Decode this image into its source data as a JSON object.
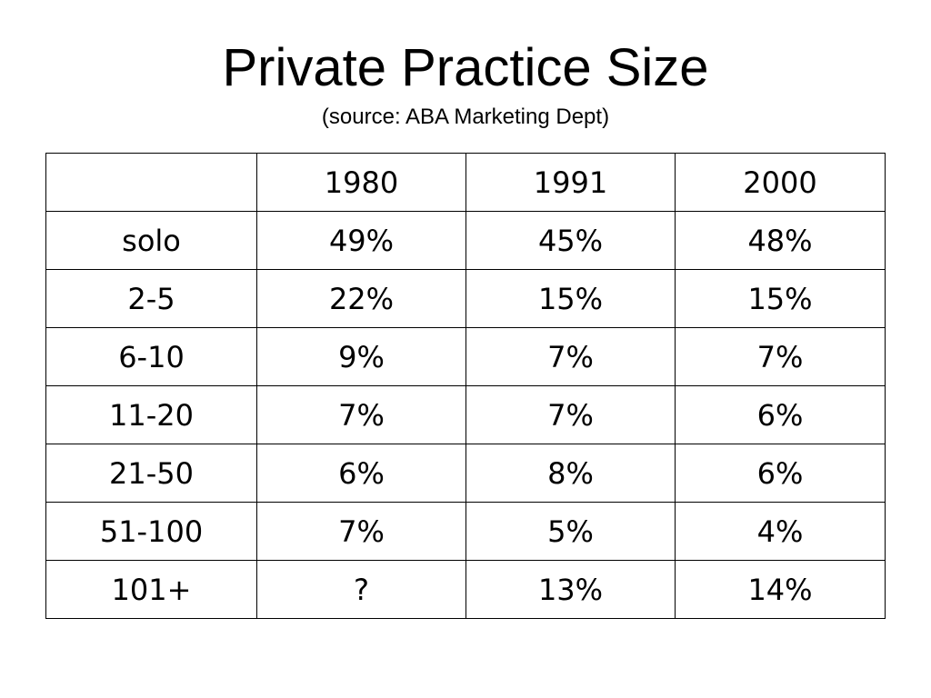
{
  "slide": {
    "title": "Private Practice Size",
    "subtitle": "(source: ABA Marketing Dept)"
  },
  "table": {
    "header": [
      "",
      "1980",
      "1991",
      "2000"
    ],
    "rows": [
      {
        "label": "solo",
        "values": [
          "49%",
          "45%",
          "48%"
        ]
      },
      {
        "label": "2-5",
        "values": [
          "22%",
          "15%",
          "15%"
        ]
      },
      {
        "label": "6-10",
        "values": [
          "9%",
          "7%",
          "7%"
        ]
      },
      {
        "label": "11-20",
        "values": [
          "7%",
          "7%",
          "6%"
        ]
      },
      {
        "label": "21-50",
        "values": [
          "6%",
          "8%",
          "6%"
        ]
      },
      {
        "label": "51-100",
        "values": [
          "7%",
          "5%",
          "4%"
        ]
      },
      {
        "label": "101+",
        "values": [
          "?",
          "13%",
          "14%"
        ]
      }
    ]
  }
}
